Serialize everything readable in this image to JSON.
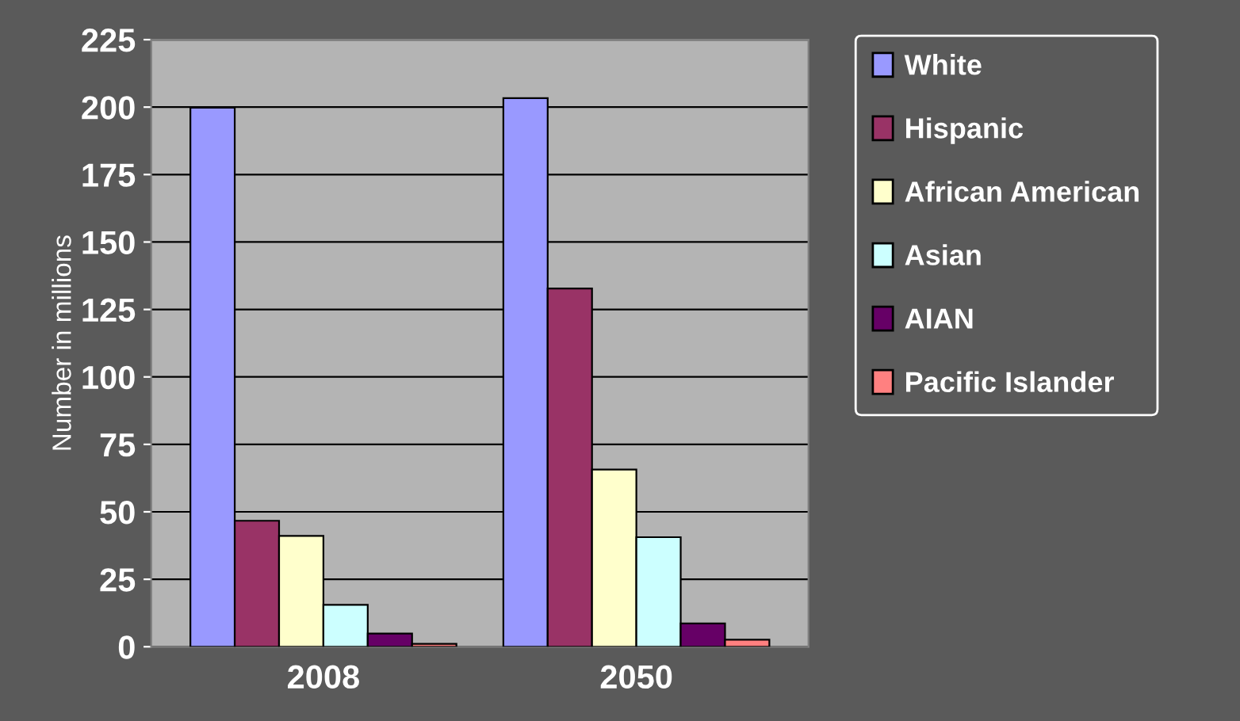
{
  "chart_data": {
    "type": "bar",
    "ylabel": "Number in millions",
    "categories": [
      "2008",
      "2050"
    ],
    "series": [
      {
        "name": "White",
        "color": "#9999ff",
        "values": [
          199.8,
          203.3
        ]
      },
      {
        "name": "Hispanic",
        "color": "#993366",
        "values": [
          46.7,
          132.8
        ]
      },
      {
        "name": "African American",
        "color": "#ffffcc",
        "values": [
          41.1,
          65.7
        ]
      },
      {
        "name": "Asian",
        "color": "#ccffff",
        "values": [
          15.5,
          40.6
        ]
      },
      {
        "name": "AIAN",
        "color": "#660066",
        "values": [
          4.9,
          8.6
        ]
      },
      {
        "name": "Pacific Islander",
        "color": "#ff8080",
        "values": [
          1.1,
          2.6
        ]
      }
    ],
    "ylim": [
      0,
      225
    ],
    "yticks": [
      0,
      25,
      50,
      75,
      100,
      125,
      150,
      175,
      200,
      225
    ],
    "grid": "y",
    "legend": "right"
  }
}
